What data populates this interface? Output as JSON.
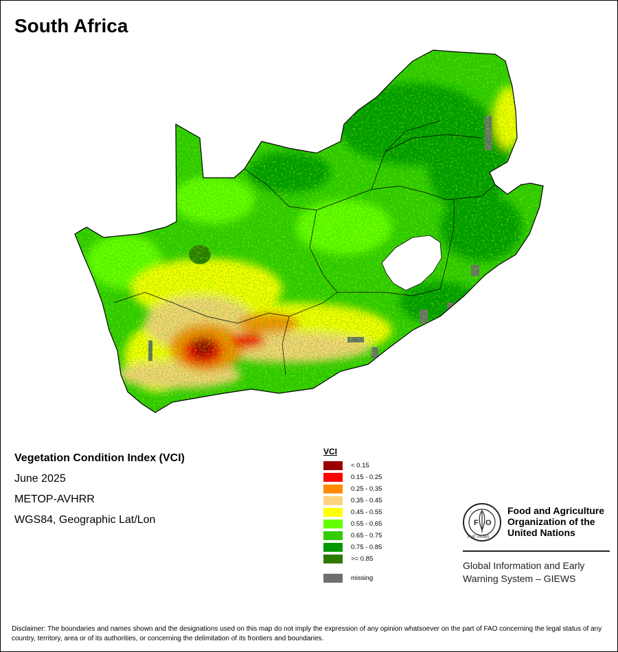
{
  "map": {
    "title": "South Africa",
    "colors": {
      "background": "#ffffff",
      "lesotho": "#ffffff",
      "border": "#000000"
    }
  },
  "info": {
    "heading": "Vegetation Condition Index (VCI)",
    "date": "June 2025",
    "sensor": "METOP-AVHRR",
    "projection": "WGS84, Geographic Lat/Lon"
  },
  "legend": {
    "title": "VCI",
    "items": [
      {
        "label": "< 0.15",
        "color": "#990000"
      },
      {
        "label": "0.15 - 0.25",
        "color": "#ff0000"
      },
      {
        "label": "0.25 - 0.35",
        "color": "#ff8c00"
      },
      {
        "label": "0.35 - 0.45",
        "color": "#ffd27f"
      },
      {
        "label": "0.45 - 0.55",
        "color": "#ffff00"
      },
      {
        "label": "0.55 - 0.65",
        "color": "#66ff00"
      },
      {
        "label": "0.65 - 0.75",
        "color": "#33cc00"
      },
      {
        "label": "0.75 - 0.85",
        "color": "#009900"
      },
      {
        "label": ">= 0.85",
        "color": "#2d7a00"
      }
    ],
    "missing": {
      "label": "missing",
      "color": "#6e6e6e"
    }
  },
  "organization": {
    "name_lines": [
      "Food and Agriculture",
      "Organization of the",
      "United Nations"
    ],
    "logo_text": "FIAT PANIS",
    "logo_letters": "FAO",
    "system_lines": [
      "Global Information and Early",
      "Warning System – GIEWS"
    ]
  },
  "disclaimer": "Disclaimer: The boundaries and names shown and the designations used on this map do not imply the expression of any opinion whatsoever on the part of FAO concerning the legal status of any country, territory, area or of its authorities, or concerning the delimitation of its frontiers and boundaries."
}
